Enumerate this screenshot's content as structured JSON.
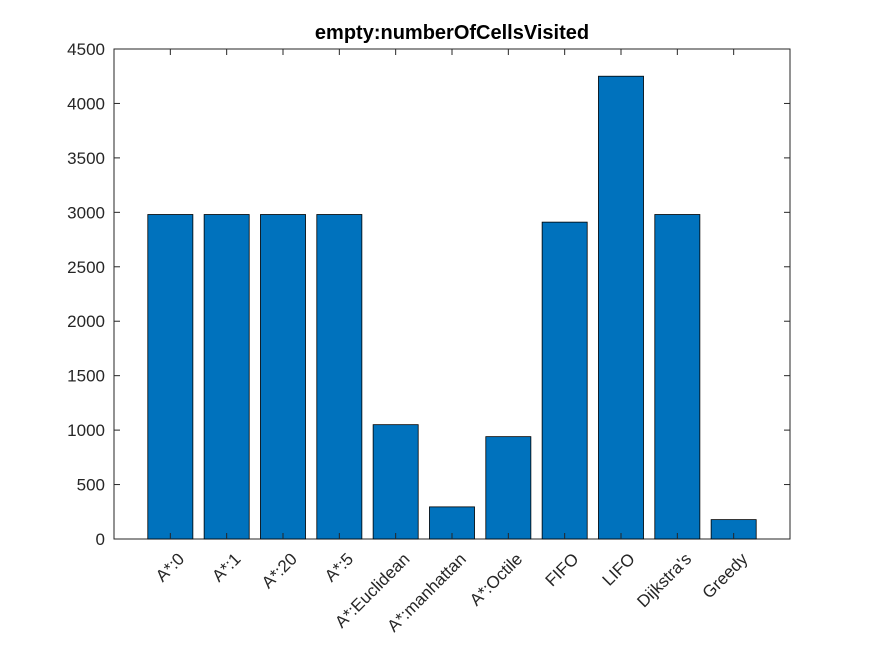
{
  "chart_data": {
    "type": "bar",
    "title": "empty:numberOfCellsVisited",
    "xlabel": "",
    "ylabel": "",
    "categories": [
      "A*:0",
      "A*:1",
      "A*:20",
      "A*:5",
      "A*:Euclidean",
      "A*:manhattan",
      "A*:Octile",
      "FIFO",
      "LIFO",
      "Dijkstra's",
      "Greedy"
    ],
    "values": [
      2980,
      2980,
      2980,
      2980,
      1050,
      295,
      940,
      2910,
      4250,
      2980,
      178
    ],
    "ylim": [
      0,
      4500
    ],
    "yticks": [
      0,
      500,
      1000,
      1500,
      2000,
      2500,
      3000,
      3500,
      4000,
      4500
    ],
    "grid": false,
    "bar_color": "#0072BD",
    "bar_edge_color": "#000000"
  }
}
